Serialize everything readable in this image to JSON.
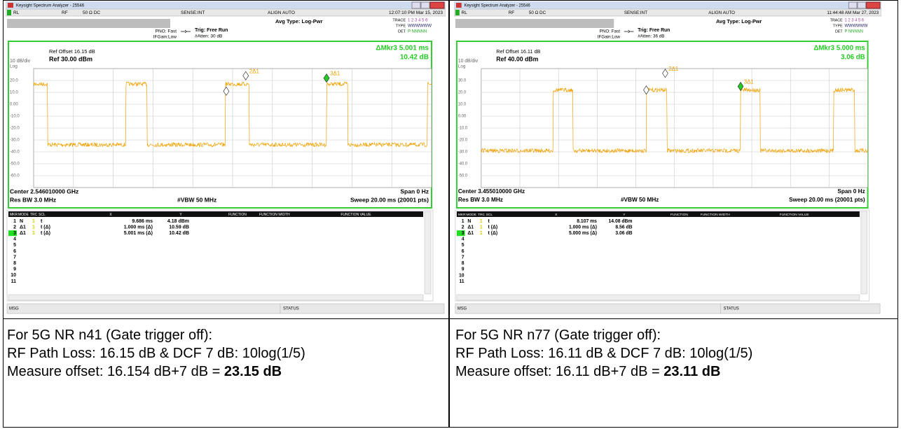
{
  "panels": [
    {
      "window_title": "Keysight Spectrum Analyzer - 25546",
      "top_bar": {
        "rl": "RL",
        "rf": "RF",
        "impedance": "50 Ω  DC",
        "sense": "SENSE:INT",
        "align": "ALIGN AUTO",
        "timestamp": "12:07:10 PM Mar 15, 2023"
      },
      "avg_type": "Avg Type: Log-Pwr",
      "trace_label": "TRACE",
      "trace_numbers": "1 2 3 4 5 6",
      "type_label": "TYPE",
      "type_values": "WWWWWW",
      "det_label": "DET",
      "det_values": "P NNNNN",
      "pno": "PNO: Fast",
      "if_gain": "IFGain:Low",
      "trig": "Trig: Free Run",
      "atten": "#Atten: 30 dB",
      "ref_offset": "Ref Offset 16.15 dB",
      "scale": "10 dB/div",
      "ref_level": "Ref 30.00 dBm",
      "log": "Log",
      "delta_marker": "ΔMkr3 5.001 ms",
      "delta_value": "10.42 dB",
      "y_labels": [
        "20.0",
        "10.0",
        "0.00",
        "-10.0",
        "-20.0",
        "-30.0",
        "-40.0",
        "-50.0",
        "-60.0"
      ],
      "marker_labels": [
        "2Δ1",
        "3Δ1"
      ],
      "center": "Center 2.546010000 GHz",
      "span": "Span 0 Hz",
      "res_bw": "Res BW 3.0 MHz",
      "vbw": "#VBW 50 MHz",
      "sweep": "Sweep  20.00 ms (20001 pts)",
      "table_headers": [
        "MKR",
        "MODE",
        "TRC",
        "SCL",
        "X",
        "Y",
        "FUNCTION",
        "FUNCTION WIDTH",
        "FUNCTION VALUE"
      ],
      "rows": [
        {
          "mkr": "1",
          "mode": "N",
          "trc": "1",
          "scl": "t",
          "x": "9.686 ms",
          "y": "4.18 dBm"
        },
        {
          "mkr": "2",
          "mode": "Δ1",
          "trc": "1",
          "scl": "t  (Δ)",
          "x": "1.000 ms  (Δ)",
          "y": "10.59 dB"
        },
        {
          "mkr": "3",
          "mode": "Δ1",
          "trc": "1",
          "scl": "t  (Δ)",
          "x": "5.001 ms  (Δ)",
          "y": "10.42 dB"
        },
        {
          "mkr": "4"
        },
        {
          "mkr": "5"
        },
        {
          "mkr": "6"
        },
        {
          "mkr": "7"
        },
        {
          "mkr": "8"
        },
        {
          "mkr": "9"
        },
        {
          "mkr": "10"
        },
        {
          "mkr": "11"
        }
      ],
      "msg": "MSG",
      "status": "STATUS",
      "caption": {
        "line1": "For 5G NR n41 (Gate trigger off):",
        "line2": "RF Path Loss: 16.15 dB & DCF 7 dB: 10log(1/5)",
        "line3": "Measure offset: 16.154 dB+7 dB = ",
        "line3_bold": "23.15 dB"
      }
    },
    {
      "window_title": "Keysight Spectrum Analyzer - 25546",
      "top_bar": {
        "rl": "RL",
        "rf": "RF",
        "impedance": "50 Ω  DC",
        "sense": "SENSE:INT",
        "align": "ALIGN AUTO",
        "timestamp": "11:44:48 AM Mar 27, 2023"
      },
      "avg_type": "Avg Type: Log-Pwr",
      "trace_label": "TRACE",
      "trace_numbers": "1 2 3 4 5 6",
      "type_label": "TYPE",
      "type_values": "WWWWWW",
      "det_label": "DET",
      "det_values": "P NNNNN",
      "pno": "PNO: Fast",
      "if_gain": "IFGain:Low",
      "trig": "Trig: Free Run",
      "atten": "#Atten: 36 dB",
      "ref_offset": "Ref Offset 16.11 dB",
      "scale": "10 dB/div",
      "ref_level": "Ref 40.00 dBm",
      "log": "Log",
      "delta_marker": "ΔMkr3 5.000 ms",
      "delta_value": "3.06 dB",
      "y_labels": [
        "30.0",
        "20.0",
        "10.0",
        "0.00",
        "-10.0",
        "-20.0",
        "-30.0",
        "-40.0",
        "-50.0"
      ],
      "marker_labels": [
        "2Δ1",
        "3Δ1"
      ],
      "center": "Center 3.455010000 GHz",
      "span": "Span 0 Hz",
      "res_bw": "Res BW 3.0 MHz",
      "vbw": "#VBW 50 MHz",
      "sweep": "Sweep  20.00 ms (20001 pts)",
      "table_headers": [
        "MKR",
        "MODE",
        "TRC",
        "SCL",
        "X",
        "Y",
        "FUNCTION",
        "FUNCTION WIDTH",
        "FUNCTION VALUE"
      ],
      "rows": [
        {
          "mkr": "1",
          "mode": "N",
          "trc": "1",
          "scl": "t",
          "x": "8.107 ms",
          "y": "14.08 dBm"
        },
        {
          "mkr": "2",
          "mode": "Δ1",
          "trc": "1",
          "scl": "t  (Δ)",
          "x": "1.000 ms  (Δ)",
          "y": "8.56 dB"
        },
        {
          "mkr": "3",
          "mode": "Δ1",
          "trc": "1",
          "scl": "t  (Δ)",
          "x": "5.000 ms  (Δ)",
          "y": "3.06 dB"
        },
        {
          "mkr": "4"
        },
        {
          "mkr": "5"
        },
        {
          "mkr": "6"
        },
        {
          "mkr": "7"
        },
        {
          "mkr": "8"
        },
        {
          "mkr": "9"
        },
        {
          "mkr": "10"
        },
        {
          "mkr": "11"
        }
      ],
      "msg": "MSG",
      "status": "STATUS",
      "caption": {
        "line1": "For 5G NR n77 (Gate trigger off):",
        "line2": "RF Path Loss: 16.11 dB & DCF 7 dB: 10log(1/5)",
        "line3": "Measure offset: 16.11 dB+7 dB = ",
        "line3_bold": "23.11 dB"
      }
    }
  ]
}
